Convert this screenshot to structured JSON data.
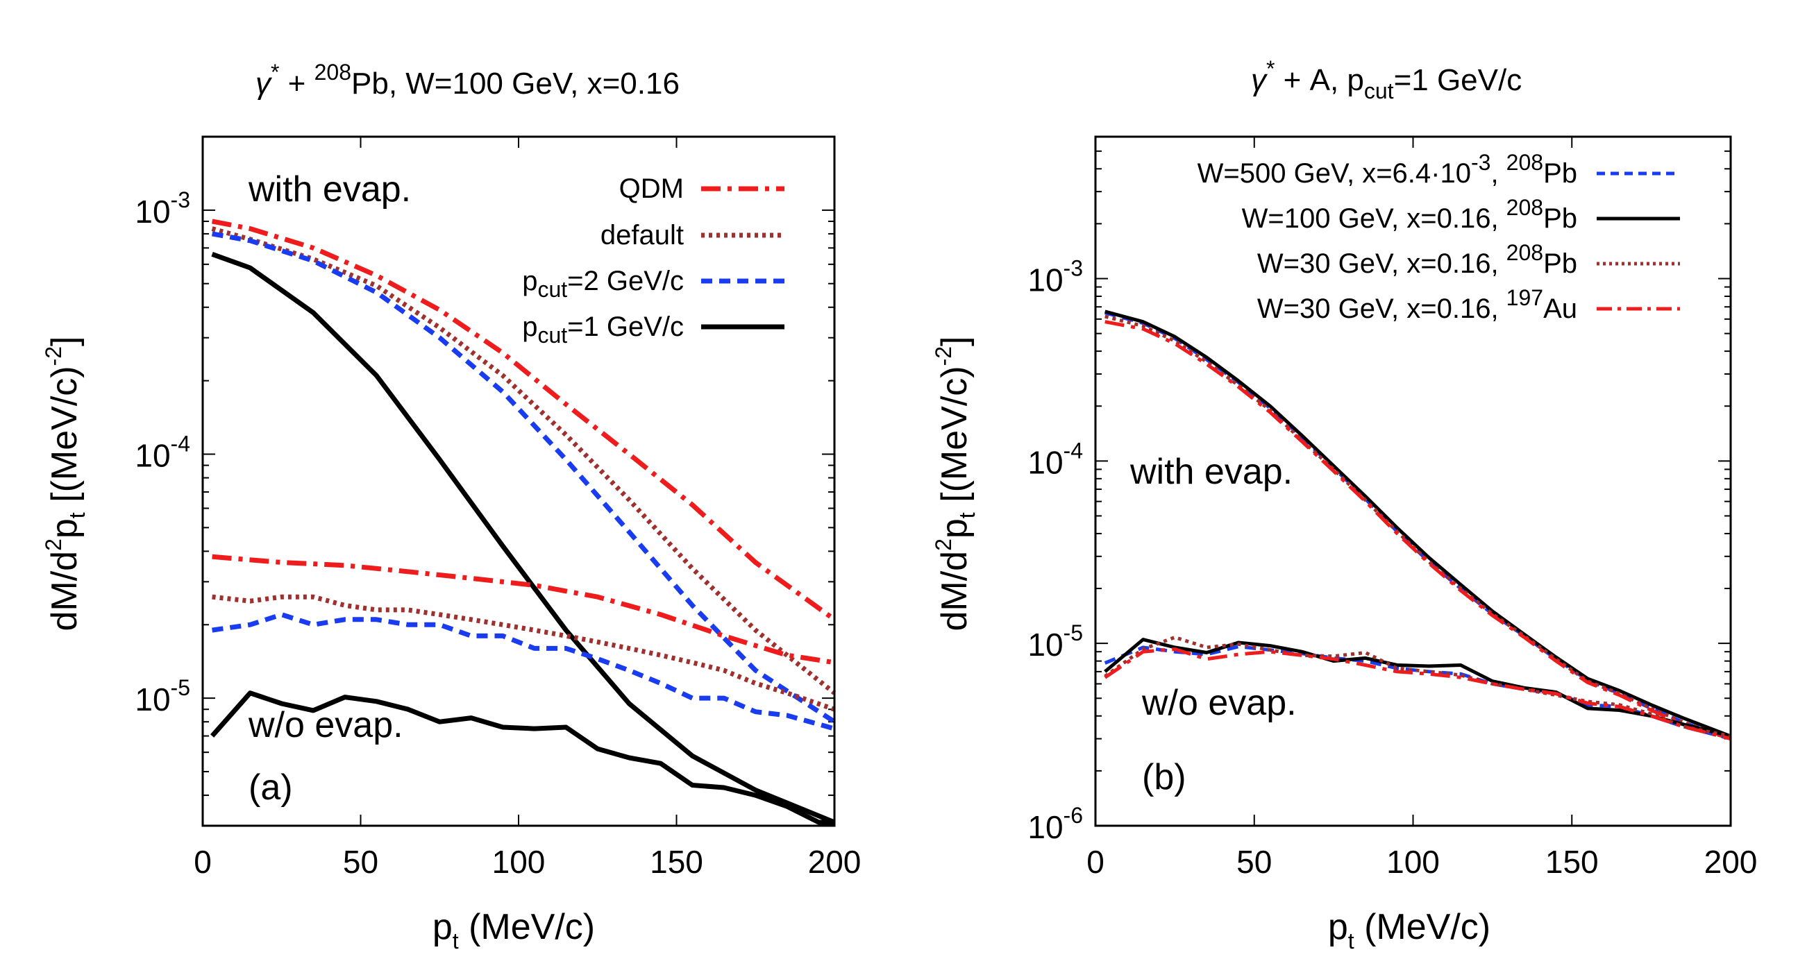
{
  "chart_data": [
    {
      "panel": "(a)",
      "type": "line",
      "title": "γ* + 208Pb, W=100 GeV, x=0.16",
      "title_parts": {
        "gamma": "γ",
        "star": "*",
        "plus": " + ",
        "mass": "208",
        "rest": "Pb, W=100 GeV, x=0.16"
      },
      "xlabel": "pt (MeV/c)",
      "xlabel_parts": {
        "p": "p",
        "sub": "t",
        "rest": " (MeV/c)"
      },
      "ylabel": "dM/d2pt [(MeV/c)-2]",
      "ylabel_parts": {
        "a": "dM/d",
        "sup1": "2",
        "b": "p",
        "sub": "t",
        "c": " [(MeV/c)",
        "sup2": "-2",
        "d": "]"
      },
      "xlim": [
        0,
        200
      ],
      "ylim": [
        3e-06,
        0.002
      ],
      "xscale": "linear",
      "yscale": "log",
      "xticks": [
        0,
        50,
        100,
        150,
        200
      ],
      "xtick_labels": [
        "0",
        "50",
        "100",
        "150",
        "200"
      ],
      "yticks": [
        1e-05,
        0.0001,
        0.001
      ],
      "ytick_labels": [
        {
          "base": "10",
          "exp": "-5"
        },
        {
          "base": "10",
          "exp": "-4"
        },
        {
          "base": "10",
          "exp": "-3"
        }
      ],
      "legend_position": "top-right",
      "annotations": [
        "with evap.",
        "w/o evap.",
        "(a)"
      ],
      "series": [
        {
          "name": "QDM",
          "legend_parts": {
            "main": "QDM"
          },
          "color": "#ee1c1c",
          "style": "dashdot",
          "group": "with evap.",
          "x": [
            3,
            15,
            35,
            55,
            75,
            95,
            115,
            135,
            155,
            175,
            200
          ],
          "y": [
            0.0009,
            0.00084,
            0.0007,
            0.00054,
            0.00039,
            0.00026,
            0.00016,
            0.0001,
            6.2e-05,
            3.6e-05,
            2.1e-05
          ]
        },
        {
          "name": "default",
          "legend_parts": {
            "main": "default"
          },
          "color": "#a0302e",
          "style": "dotted",
          "group": "with evap.",
          "x": [
            3,
            15,
            35,
            55,
            75,
            95,
            115,
            135,
            155,
            175,
            200
          ],
          "y": [
            0.00084,
            0.00076,
            0.00063,
            0.00049,
            0.00033,
            0.00021,
            0.00012,
            6.5e-05,
            3.4e-05,
            1.9e-05,
            1.05e-05
          ]
        },
        {
          "name": "pcut=2 GeV/c",
          "legend_parts": {
            "p": "p",
            "sub": "cut",
            "rest": "=2 GeV/c"
          },
          "color": "#1a3cf0",
          "style": "dashed",
          "group": "with evap.",
          "x": [
            3,
            15,
            35,
            55,
            75,
            95,
            115,
            135,
            155,
            175,
            200
          ],
          "y": [
            0.0008,
            0.00075,
            0.00062,
            0.00046,
            0.0003,
            0.00018,
            9.5e-05,
            4.8e-05,
            2.4e-05,
            1.3e-05,
            8e-06
          ]
        },
        {
          "name": "pcut=1 GeV/c",
          "legend_parts": {
            "p": "p",
            "sub": "cut",
            "rest": "=1 GeV/c"
          },
          "color": "#000000",
          "style": "solid",
          "group": "with evap.",
          "x": [
            3,
            15,
            35,
            55,
            75,
            95,
            115,
            135,
            155,
            175,
            200
          ],
          "y": [
            0.00066,
            0.00058,
            0.00038,
            0.00021,
            9.5e-05,
            4.2e-05,
            1.9e-05,
            9.5e-06,
            5.8e-06,
            4.2e-06,
            3.1e-06
          ]
        },
        {
          "name": "QDM",
          "color": "#ee1c1c",
          "style": "dashdot",
          "group": "w/o evap.",
          "x": [
            3,
            25,
            45,
            65,
            85,
            105,
            125,
            145,
            165,
            185,
            200
          ],
          "y": [
            3.8e-05,
            3.6e-05,
            3.5e-05,
            3.3e-05,
            3.1e-05,
            2.9e-05,
            2.6e-05,
            2.2e-05,
            1.8e-05,
            1.5e-05,
            1.4e-05
          ]
        },
        {
          "name": "default",
          "color": "#a0302e",
          "style": "dotted",
          "group": "w/o evap.",
          "x": [
            3,
            15,
            25,
            35,
            45,
            55,
            65,
            75,
            85,
            95,
            105,
            115,
            125,
            135,
            145,
            155,
            165,
            175,
            185,
            200
          ],
          "y": [
            2.6e-05,
            2.5e-05,
            2.6e-05,
            2.6e-05,
            2.4e-05,
            2.3e-05,
            2.3e-05,
            2.2e-05,
            2.1e-05,
            2e-05,
            1.9e-05,
            1.8e-05,
            1.7e-05,
            1.6e-05,
            1.5e-05,
            1.4e-05,
            1.3e-05,
            1.15e-05,
            1.05e-05,
            9e-06
          ]
        },
        {
          "name": "pcut=2 GeV/c",
          "color": "#1a3cf0",
          "style": "dashed",
          "group": "w/o evap.",
          "x": [
            3,
            15,
            25,
            35,
            45,
            55,
            65,
            75,
            85,
            95,
            105,
            115,
            125,
            135,
            145,
            155,
            165,
            175,
            185,
            200
          ],
          "y": [
            1.9e-05,
            2e-05,
            2.2e-05,
            2e-05,
            2.1e-05,
            2.1e-05,
            2e-05,
            2e-05,
            1.8e-05,
            1.8e-05,
            1.6e-05,
            1.6e-05,
            1.45e-05,
            1.3e-05,
            1.15e-05,
            1e-05,
            1e-05,
            8.8e-06,
            8.5e-06,
            7.5e-06
          ]
        },
        {
          "name": "pcut=1 GeV/c",
          "color": "#000000",
          "style": "solid",
          "group": "w/o evap.",
          "x": [
            3,
            15,
            25,
            35,
            45,
            55,
            65,
            75,
            85,
            95,
            105,
            115,
            125,
            135,
            145,
            155,
            165,
            175,
            185,
            195,
            200
          ],
          "y": [
            7e-06,
            1.05e-05,
            9.5e-06,
            8.9e-06,
            1.01e-05,
            9.7e-06,
            9e-06,
            8e-06,
            8.3e-06,
            7.6e-06,
            7.5e-06,
            7.6e-06,
            6.2e-06,
            5.7e-06,
            5.4e-06,
            4.4e-06,
            4.3e-06,
            4e-06,
            3.6e-06,
            3.1e-06,
            3.1e-06
          ]
        }
      ]
    },
    {
      "panel": "(b)",
      "type": "line",
      "title": "γ* + A, pcut=1 GeV/c",
      "title_parts": {
        "gamma": "γ",
        "star": "*",
        "a": " + A, p",
        "sub": "cut",
        "b": "=1 GeV/c"
      },
      "xlabel": "pt (MeV/c)",
      "xlabel_parts": {
        "p": "p",
        "sub": "t",
        "rest": " (MeV/c)"
      },
      "ylabel": "dM/d2pt [(MeV/c)-2]",
      "ylabel_parts": {
        "a": "dM/d",
        "sup1": "2",
        "b": "p",
        "sub": "t",
        "c": " [(MeV/c)",
        "sup2": "-2",
        "d": "]"
      },
      "xlim": [
        0,
        200
      ],
      "ylim": [
        1e-06,
        0.006
      ],
      "xscale": "linear",
      "yscale": "log",
      "xticks": [
        0,
        50,
        100,
        150,
        200
      ],
      "xtick_labels": [
        "0",
        "50",
        "100",
        "150",
        "200"
      ],
      "yticks": [
        1e-06,
        1e-05,
        0.0001,
        0.001
      ],
      "ytick_labels": [
        {
          "base": "10",
          "exp": "-6"
        },
        {
          "base": "10",
          "exp": "-5"
        },
        {
          "base": "10",
          "exp": "-4"
        },
        {
          "base": "10",
          "exp": "-3"
        }
      ],
      "legend_position": "top-right",
      "annotations": [
        "with evap.",
        "w/o evap.",
        "(b)"
      ],
      "series": [
        {
          "name": "W=500 GeV, x=6.4·10-3, 208Pb",
          "legend_parts": {
            "a": "W=500 GeV, x=6.4·10",
            "sup1": "-3",
            "b": ", ",
            "sup2": "208",
            "c": "Pb"
          },
          "color": "#1a3cf0",
          "style": "dashed",
          "group": "with evap.",
          "x": [
            3,
            15,
            25,
            35,
            45,
            55,
            65,
            75,
            85,
            95,
            105,
            115,
            125,
            135,
            145,
            155,
            165,
            175,
            185,
            200
          ],
          "y": [
            0.00065,
            0.00057,
            0.00047,
            0.00036,
            0.00027,
            0.000195,
            0.000135,
            9.2e-05,
            6.2e-05,
            4.1e-05,
            2.8e-05,
            2e-05,
            1.45e-05,
            1.1e-05,
            8.2e-06,
            6.3e-06,
            5.3e-06,
            4.4e-06,
            3.7e-06,
            3e-06
          ]
        },
        {
          "name": "W=100 GeV, x=0.16, 208Pb",
          "legend_parts": {
            "a": "W=100 GeV, x=0.16, ",
            "sup": "208",
            "b": "Pb"
          },
          "color": "#000000",
          "style": "solid",
          "group": "with evap.",
          "x": [
            3,
            15,
            25,
            35,
            45,
            55,
            65,
            75,
            85,
            95,
            105,
            115,
            125,
            135,
            145,
            155,
            165,
            175,
            185,
            200
          ],
          "y": [
            0.00066,
            0.00058,
            0.00048,
            0.00037,
            0.000275,
            0.0002,
            0.000138,
            9.4e-05,
            6.4e-05,
            4.3e-05,
            2.95e-05,
            2.1e-05,
            1.5e-05,
            1.12e-05,
            8.4e-06,
            6.4e-06,
            5.5e-06,
            4.6e-06,
            3.9e-06,
            3.1e-06
          ]
        },
        {
          "name": "W=30 GeV, x=0.16, 208Pb",
          "legend_parts": {
            "a": "W=30 GeV, x=0.16, ",
            "sup": "208",
            "b": "Pb"
          },
          "color": "#a0302e",
          "style": "dotted",
          "group": "with evap.",
          "x": [
            3,
            15,
            25,
            35,
            45,
            55,
            65,
            75,
            85,
            95,
            105,
            115,
            125,
            135,
            145,
            155,
            165,
            175,
            185,
            200
          ],
          "y": [
            0.00062,
            0.00055,
            0.000455,
            0.00035,
            0.00026,
            0.00019,
            0.00013,
            9e-05,
            6.1e-05,
            4.1e-05,
            2.8e-05,
            2e-05,
            1.45e-05,
            1.1e-05,
            8.2e-06,
            6.2e-06,
            5.3e-06,
            4.4e-06,
            3.7e-06,
            3e-06
          ]
        },
        {
          "name": "W=30 GeV, x=0.16, 197Au",
          "legend_parts": {
            "a": "W=30 GeV, x=0.16, ",
            "sup": "197",
            "b": "Au"
          },
          "color": "#ee1c1c",
          "style": "dashdot",
          "group": "with evap.",
          "x": [
            3,
            15,
            25,
            35,
            45,
            55,
            65,
            75,
            85,
            95,
            105,
            115,
            125,
            135,
            145,
            155,
            165,
            175,
            185,
            200
          ],
          "y": [
            0.00058,
            0.00053,
            0.00044,
            0.00034,
            0.000255,
            0.000185,
            0.000128,
            8.8e-05,
            6e-05,
            4e-05,
            2.75e-05,
            1.95e-05,
            1.42e-05,
            1.08e-05,
            8e-06,
            6.1e-06,
            5.2e-06,
            4.3e-06,
            3.6e-06,
            3e-06
          ]
        },
        {
          "name": "W=500 GeV, x=6.4·10-3, 208Pb",
          "color": "#1a3cf0",
          "style": "dashed",
          "group": "w/o evap.",
          "x": [
            3,
            15,
            25,
            35,
            45,
            55,
            65,
            75,
            85,
            95,
            105,
            115,
            125,
            135,
            145,
            155,
            165,
            175,
            185,
            200
          ],
          "y": [
            7.8e-06,
            9.5e-06,
            9e-06,
            8.7e-06,
            9.6e-06,
            9.2e-06,
            8.8e-06,
            8.3e-06,
            8e-06,
            7.3e-06,
            7e-06,
            6.8e-06,
            6e-06,
            5.6e-06,
            5.3e-06,
            4.6e-06,
            4.5e-06,
            4e-06,
            3.5e-06,
            3e-06
          ]
        },
        {
          "name": "W=100 GeV, x=0.16, 208Pb",
          "color": "#000000",
          "style": "solid",
          "group": "w/o evap.",
          "x": [
            3,
            15,
            25,
            35,
            45,
            55,
            65,
            75,
            85,
            95,
            105,
            115,
            125,
            135,
            145,
            155,
            165,
            175,
            185,
            200
          ],
          "y": [
            7e-06,
            1.05e-05,
            9.5e-06,
            8.9e-06,
            1.01e-05,
            9.7e-06,
            9e-06,
            8e-06,
            8.3e-06,
            7.6e-06,
            7.5e-06,
            7.6e-06,
            6.2e-06,
            5.7e-06,
            5.4e-06,
            4.4e-06,
            4.3e-06,
            4e-06,
            3.6e-06,
            3.1e-06
          ]
        },
        {
          "name": "W=30 GeV, x=0.16, 208Pb",
          "color": "#a0302e",
          "style": "dotted",
          "group": "w/o evap.",
          "x": [
            3,
            15,
            25,
            35,
            45,
            55,
            65,
            75,
            85,
            95,
            105,
            115,
            125,
            135,
            145,
            155,
            165,
            175,
            185,
            200
          ],
          "y": [
            6.6e-06,
            9.3e-06,
            1.08e-05,
            9.5e-06,
            9.9e-06,
            9.2e-06,
            8.6e-06,
            8.5e-06,
            8.9e-06,
            7.3e-06,
            7e-06,
            6.7e-06,
            6e-06,
            5.6e-06,
            5.2e-06,
            4.8e-06,
            4.6e-06,
            4.1e-06,
            3.5e-06,
            3.1e-06
          ]
        },
        {
          "name": "W=30 GeV, x=0.16, 197Au",
          "color": "#ee1c1c",
          "style": "dashdot",
          "group": "w/o evap.",
          "x": [
            3,
            15,
            25,
            35,
            45,
            55,
            65,
            75,
            85,
            95,
            105,
            115,
            125,
            135,
            145,
            155,
            165,
            175,
            185,
            200
          ],
          "y": [
            6.5e-06,
            9e-06,
            9.3e-06,
            8.2e-06,
            8.7e-06,
            9e-06,
            8.6e-06,
            8.2e-06,
            7.6e-06,
            7e-06,
            6.8e-06,
            6.5e-06,
            6e-06,
            5.6e-06,
            5.3e-06,
            4.7e-06,
            4.5e-06,
            4e-06,
            3.5e-06,
            3e-06
          ]
        }
      ]
    }
  ]
}
